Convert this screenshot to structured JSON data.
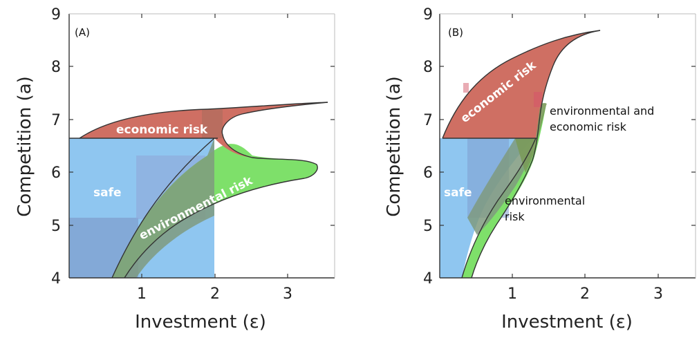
{
  "chart_data": [
    {
      "type": "area",
      "panel_label": "(A)",
      "xlabel": "Investment (ε)",
      "ylabel": "Competition (a)",
      "xticks": [
        "1",
        "2",
        "3"
      ],
      "yticks": [
        "4",
        "5",
        "6",
        "7",
        "8",
        "9"
      ],
      "xlim": [
        0,
        3.6
      ],
      "ylim": [
        4,
        9
      ],
      "regions": [
        {
          "name": "safe",
          "label": "safe",
          "color": "#8fc6f0"
        },
        {
          "name": "economic risk",
          "label": "economic risk",
          "color": "#cf6f63"
        },
        {
          "name": "environmental risk",
          "label": "environmental risk",
          "color": "#7ee06a"
        }
      ]
    },
    {
      "type": "area",
      "panel_label": "(B)",
      "xlabel": "Investment (ε)",
      "ylabel": "Competition (a)",
      "xticks": [
        "1",
        "2",
        "3"
      ],
      "yticks": [
        "4",
        "5",
        "6",
        "7",
        "8",
        "9"
      ],
      "xlim": [
        0,
        3.6
      ],
      "ylim": [
        4,
        9
      ],
      "regions": [
        {
          "name": "safe",
          "label": "safe",
          "color": "#8fc6f0"
        },
        {
          "name": "economic risk",
          "label": "economic risk",
          "color": "#cf6f63"
        },
        {
          "name": "environmental and economic risk",
          "label_lines": [
            "environmental and",
            "economic risk"
          ],
          "color": "#7a9a5a"
        },
        {
          "name": "environmental risk",
          "label_lines": [
            "environmental",
            "risk"
          ],
          "color": "#7ee06a"
        }
      ]
    }
  ]
}
